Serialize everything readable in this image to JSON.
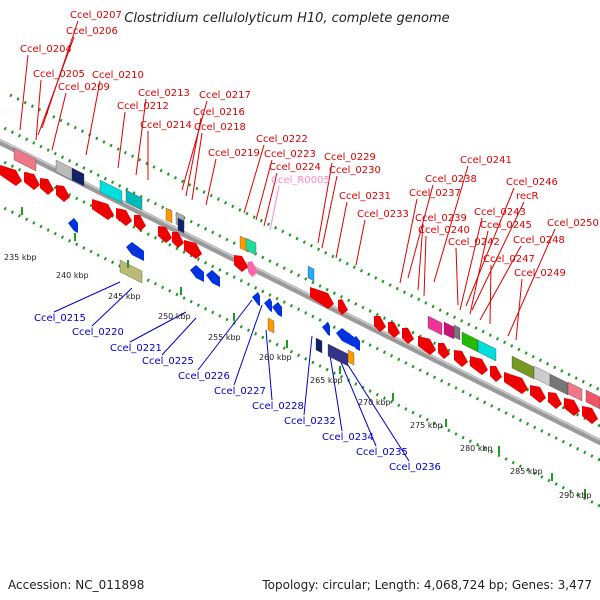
{
  "title": "Clostridium cellulolyticum H10, complete genome",
  "accession": "Accession: NC_011898",
  "topology": "Topology: circular; Length: 4,068,724 bp; Genes: 3,477",
  "colors": {
    "forward_label": "#dd0000",
    "reverse_label": "#0000cc",
    "rna_label": "#ff88cc",
    "tick_dots": "#229922",
    "backbone": "#999999"
  },
  "kbp_ticks": [
    "235 kbp",
    "240 kbp",
    "245 kbp",
    "250 kbp",
    "255 kbp",
    "260 kbp",
    "265 kbp",
    "270 kbp",
    "275 kbp",
    "280 kbp",
    "285 kbp",
    "290 kbp"
  ],
  "forward_labels": [
    "Ccel_0207",
    "Ccel_0206",
    "Ccel_0204",
    "Ccel_0205",
    "Ccel_0209",
    "Ccel_0210",
    "Ccel_0212",
    "Ccel_0213",
    "Ccel_0214",
    "Ccel_0217",
    "Ccel_0216",
    "Ccel_0218",
    "Ccel_0219",
    "Ccel_0222",
    "Ccel_0223",
    "Ccel_0224",
    "Ccel_R0005",
    "Ccel_0229",
    "Ccel_0230",
    "Ccel_0231",
    "Ccel_0233",
    "Ccel_0241",
    "Ccel_0238",
    "Ccel_0237",
    "Ccel_0239",
    "Ccel_0240",
    "Ccel_0242",
    "Ccel_0246",
    "recR",
    "Ccel_0243",
    "Ccel_0245",
    "Ccel_0248",
    "Ccel_0247",
    "Ccel_0250",
    "Ccel_0249"
  ],
  "reverse_labels": [
    "Ccel_0215",
    "Ccel_0220",
    "Ccel_0221",
    "Ccel_0225",
    "Ccel_0226",
    "Ccel_0227",
    "Ccel_0228",
    "Ccel_0232",
    "Ccel_0234",
    "Ccel_0235",
    "Ccel_0236"
  ]
}
